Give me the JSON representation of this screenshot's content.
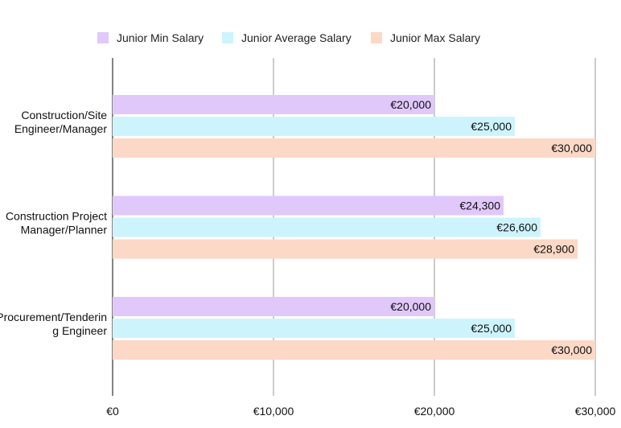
{
  "chart_data": {
    "type": "bar",
    "orientation": "horizontal",
    "title": "",
    "xlabel": "",
    "ylabel": "",
    "categories": [
      [
        "Construction/Site",
        "Engineer/Manager"
      ],
      [
        "Construction Project",
        "Manager/Planner"
      ],
      [
        "Procurement/Tenderin",
        "g Engineer"
      ]
    ],
    "series": [
      {
        "name": "Junior Min Salary",
        "color": "#e1c8fb",
        "values": [
          20000,
          24300,
          20000
        ],
        "labels": [
          "€20,000",
          "€24,300",
          "€20,000"
        ]
      },
      {
        "name": "Junior Average Salary",
        "color": "#cdf4fc",
        "values": [
          25000,
          26600,
          25000
        ],
        "labels": [
          "€25,000",
          "€26,600",
          "€25,000"
        ]
      },
      {
        "name": "Junior Max Salary",
        "color": "#fcd8c6",
        "values": [
          30000,
          28900,
          30000
        ],
        "labels": [
          "€30,000",
          "€28,900",
          "€30,000"
        ]
      }
    ],
    "xlim": [
      0,
      30000
    ],
    "xticks": [
      0,
      10000,
      20000,
      30000
    ],
    "xtick_labels": [
      "€0",
      "€10,000",
      "€20,000",
      "€30,000"
    ],
    "grid": true,
    "legend_position": "top"
  }
}
